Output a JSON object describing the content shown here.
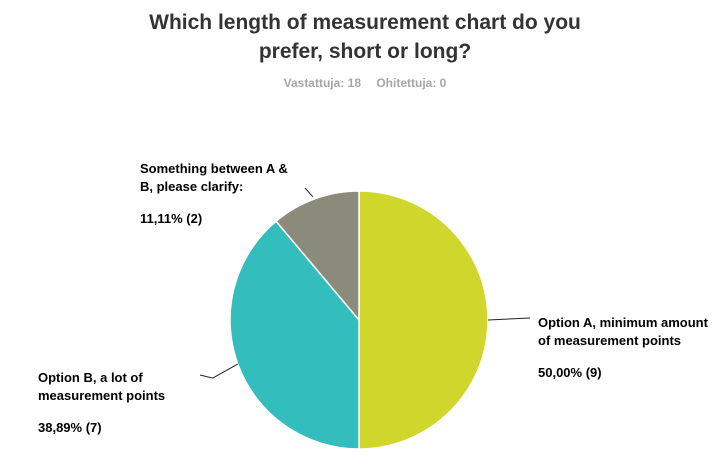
{
  "header": {
    "title_line1": "Which length of measurement chart do you",
    "title_line2": "prefer, short or long?",
    "answered": "Vastattuja: 18",
    "skipped": "Ohitettuja: 0"
  },
  "chart_data": {
    "type": "pie",
    "title": "Which length of measurement chart do you prefer, short or long?",
    "slices": [
      {
        "label": "Option A, minimum amount of measurement points",
        "percent": 50.0,
        "count": 9,
        "value_text": "50,00% (9)",
        "color": "#cfd62c"
      },
      {
        "label": "Option B, a lot of measurement points",
        "percent": 38.89,
        "count": 7,
        "value_text": "38,89% (7)",
        "color": "#33bdbd"
      },
      {
        "label": "Something between A & B, please clarify:",
        "percent": 11.11,
        "count": 2,
        "value_text": "11,11% (2)",
        "color": "#8a8b7b"
      }
    ]
  }
}
